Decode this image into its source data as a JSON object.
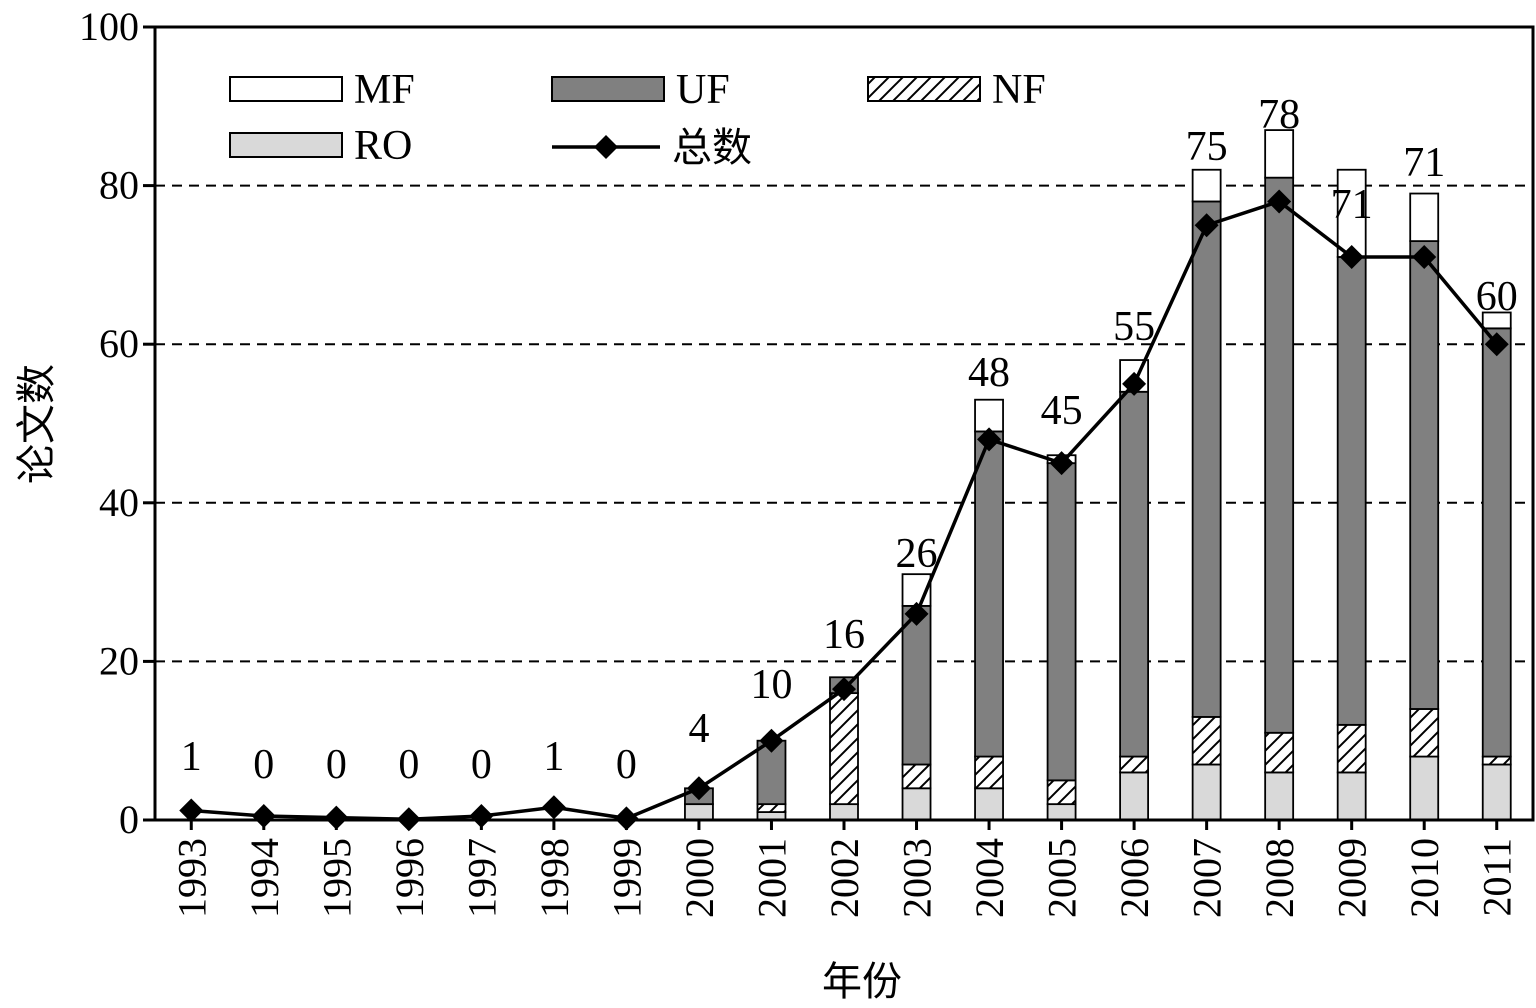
{
  "chart_data": {
    "type": "bar",
    "stacked": true,
    "categories": [
      "1993",
      "1994",
      "1995",
      "1996",
      "1997",
      "1998",
      "1999",
      "2000",
      "2001",
      "2002",
      "2003",
      "2004",
      "2005",
      "2006",
      "2007",
      "2008",
      "2009",
      "2010",
      "2011"
    ],
    "series": [
      {
        "name": "RO",
        "values": [
          0,
          0,
          0,
          0,
          0,
          0,
          0,
          2,
          1,
          2,
          4,
          4,
          2,
          6,
          7,
          6,
          6,
          8,
          7
        ],
        "color": "#d9d9d9"
      },
      {
        "name": "NF",
        "values": [
          0,
          0,
          0,
          0,
          0,
          0,
          0,
          0,
          1,
          14,
          3,
          4,
          3,
          2,
          6,
          5,
          6,
          6,
          1
        ],
        "color": "#ffffff",
        "pattern": "hatch"
      },
      {
        "name": "UF",
        "values": [
          0,
          0,
          0,
          0,
          0,
          0,
          0,
          2,
          8,
          2,
          20,
          41,
          40,
          46,
          65,
          70,
          59,
          59,
          54
        ],
        "color": "#808080"
      },
      {
        "name": "MF",
        "values": [
          0,
          0,
          0,
          0,
          0,
          0,
          0,
          0,
          0,
          0,
          4,
          4,
          1,
          4,
          4,
          6,
          11,
          6,
          2
        ],
        "color": "#ffffff"
      }
    ],
    "line": {
      "name": "总数",
      "values": [
        1,
        0,
        0,
        0,
        0,
        1,
        0,
        4,
        10,
        16,
        26,
        48,
        45,
        55,
        75,
        78,
        71,
        71,
        60
      ],
      "plot_y": [
        1.2,
        0.5,
        0.3,
        0.1,
        0.5,
        1.6,
        0.2,
        4,
        10,
        16.5,
        26,
        48,
        45,
        55,
        75,
        78,
        71,
        71,
        60
      ],
      "labels": [
        "1",
        "0",
        "0",
        "0",
        "0",
        "1",
        "0",
        "4",
        "10",
        "16",
        "26",
        "48",
        "45",
        "55",
        "75",
        "78",
        "71",
        "71",
        "60"
      ],
      "color": "#000000"
    },
    "xlabel": "年份",
    "ylabel": "论文数",
    "ylim": [
      0,
      100
    ],
    "yticks": [
      "0",
      "20",
      "40",
      "60",
      "80",
      "100"
    ],
    "grid": "horizontal-dashed",
    "legend": {
      "placement": "top-left",
      "entries": [
        "MF",
        "UF",
        "NF",
        "RO",
        "总数"
      ]
    }
  }
}
